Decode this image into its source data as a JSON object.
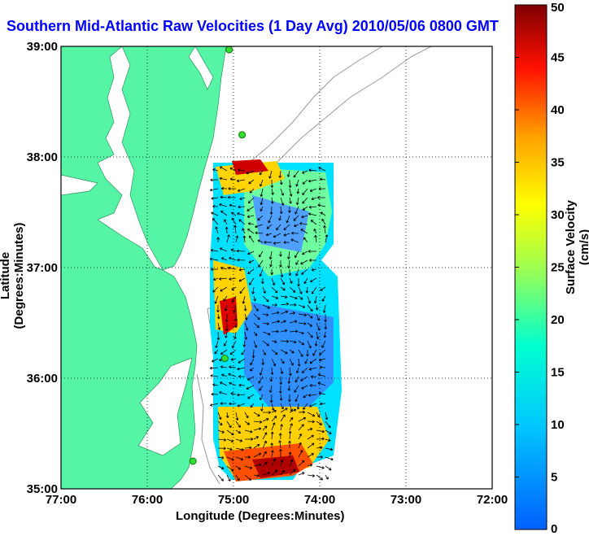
{
  "chart_data": {
    "type": "heatmap",
    "title": "Southern Mid-Atlantic Raw Velocities (1 Day Avg) 2010/05/06 0800 GMT",
    "xlabel": "Longitude (Degrees:Minutes)",
    "ylabel": "Latitude (Degrees:Minutes)",
    "colorbar_label": "Surface Velocity (cm/s)",
    "x_ticks": [
      "77:00",
      "76:00",
      "75:00",
      "74:00",
      "73:00",
      "72:00"
    ],
    "y_ticks": [
      "35:00",
      "36:00",
      "37:00",
      "38:00",
      "39:00"
    ],
    "colorbar_ticks": [
      "0",
      "5",
      "10",
      "15",
      "20",
      "25",
      "30",
      "35",
      "40",
      "45",
      "50"
    ],
    "xlim": [
      -77,
      -72
    ],
    "ylim": [
      35,
      39
    ],
    "clim": [
      0,
      50
    ],
    "grid": true,
    "colormap": "jet",
    "land_color": "#55f5a5",
    "stations": [
      {
        "lon": -75.05,
        "lat": 38.97
      },
      {
        "lon": -74.9,
        "lat": 38.2
      },
      {
        "lon": -75.1,
        "lat": 36.18
      },
      {
        "lon": -75.47,
        "lat": 35.25
      }
    ]
  }
}
